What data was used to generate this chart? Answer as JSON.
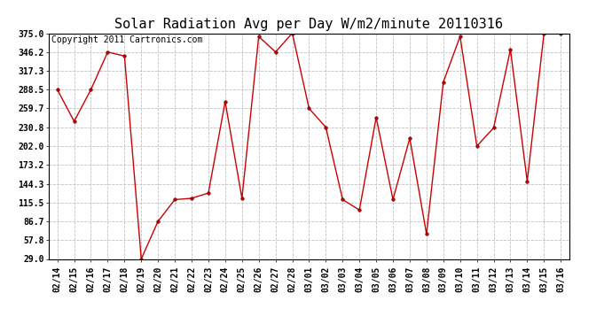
{
  "title": "Solar Radiation Avg per Day W/m2/minute 20110316",
  "copyright": "Copyright 2011 Cartronics.com",
  "dates": [
    "02/14",
    "02/15",
    "02/16",
    "02/17",
    "02/18",
    "02/19",
    "02/20",
    "02/21",
    "02/22",
    "02/23",
    "02/24",
    "02/25",
    "02/26",
    "02/27",
    "02/28",
    "03/01",
    "03/02",
    "03/03",
    "03/04",
    "03/05",
    "03/06",
    "03/07",
    "03/08",
    "03/09",
    "03/10",
    "03/11",
    "03/12",
    "03/13",
    "03/14",
    "03/15",
    "03/16"
  ],
  "values": [
    288.5,
    240.0,
    288.5,
    346.2,
    340.0,
    29.0,
    86.7,
    120.0,
    122.0,
    130.0,
    270.0,
    122.0,
    370.0,
    346.2,
    375.0,
    259.7,
    230.8,
    120.0,
    104.0,
    246.0,
    120.0,
    214.0,
    67.0,
    300.0,
    370.0,
    202.0,
    230.0,
    350.0,
    148.0,
    375.0,
    375.0
  ],
  "yticks": [
    29.0,
    57.8,
    86.7,
    115.5,
    144.3,
    173.2,
    202.0,
    230.8,
    259.7,
    288.5,
    317.3,
    346.2,
    375.0
  ],
  "line_color": "#cc0000",
  "marker_color": "#cc0000",
  "bg_color": "#ffffff",
  "grid_color": "#bbbbbb",
  "title_fontsize": 11,
  "copyright_fontsize": 7
}
